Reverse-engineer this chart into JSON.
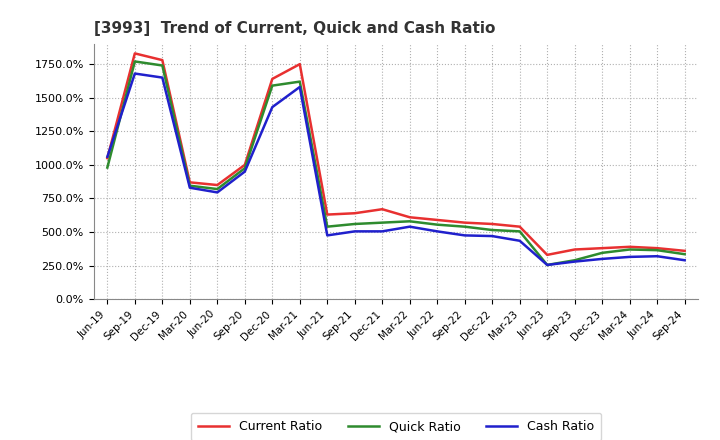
{
  "title": "[3993]  Trend of Current, Quick and Cash Ratio",
  "x_labels": [
    "Jun-19",
    "Sep-19",
    "Dec-19",
    "Mar-20",
    "Jun-20",
    "Sep-20",
    "Dec-20",
    "Mar-21",
    "Jun-21",
    "Sep-21",
    "Dec-21",
    "Mar-22",
    "Jun-22",
    "Sep-22",
    "Dec-22",
    "Mar-23",
    "Jun-23",
    "Sep-23",
    "Dec-23",
    "Mar-24",
    "Jun-24",
    "Sep-24"
  ],
  "current_ratio": [
    1050,
    1830,
    1780,
    870,
    850,
    1000,
    1640,
    1750,
    630,
    640,
    670,
    610,
    590,
    570,
    560,
    540,
    330,
    370,
    380,
    390,
    380,
    360
  ],
  "quick_ratio": [
    980,
    1770,
    1740,
    845,
    820,
    975,
    1590,
    1620,
    540,
    560,
    570,
    580,
    555,
    540,
    515,
    505,
    255,
    290,
    345,
    370,
    365,
    335
  ],
  "cash_ratio": [
    1060,
    1680,
    1650,
    830,
    795,
    950,
    1430,
    1580,
    475,
    505,
    505,
    540,
    505,
    475,
    470,
    435,
    255,
    280,
    300,
    315,
    320,
    290
  ],
  "current_color": "#e83030",
  "quick_color": "#2e8b2e",
  "cash_color": "#2020cc",
  "ylim": [
    0,
    1900
  ],
  "yticks": [
    0,
    250,
    500,
    750,
    1000,
    1250,
    1500,
    1750
  ],
  "background_color": "#ffffff",
  "grid_color": "#b0b0b0",
  "line_width": 1.8,
  "legend_labels": [
    "Current Ratio",
    "Quick Ratio",
    "Cash Ratio"
  ]
}
